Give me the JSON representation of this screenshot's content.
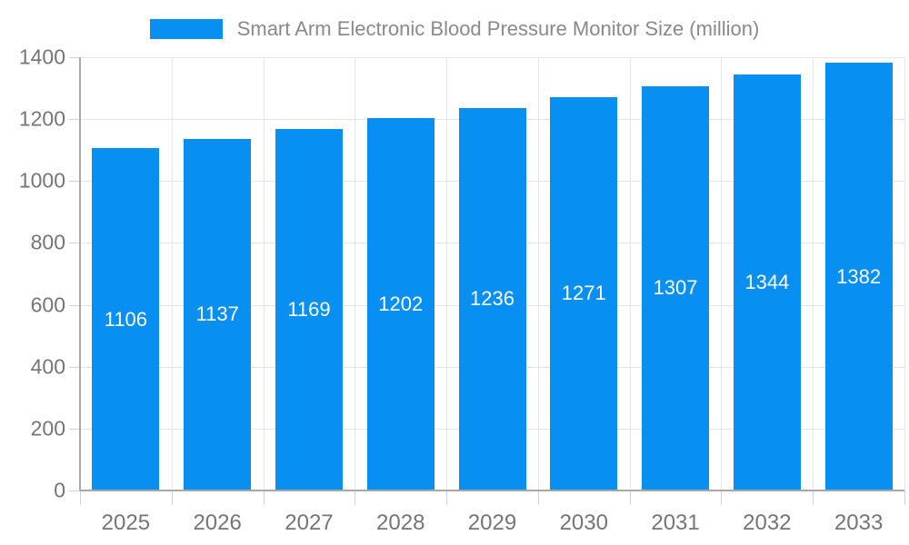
{
  "legend": {
    "label": "Smart Arm Electronic Blood Pressure Monitor Size (million)"
  },
  "colors": {
    "bar": "#0790F2",
    "grid": "#e5e5e5",
    "axis": "#a8a8a8",
    "tick": "#d2d2d2",
    "axis_text": "#757575",
    "legend_text": "#8a8a8a",
    "bar_label": "#ffffff",
    "background": "#ffffff"
  },
  "chart_data": {
    "type": "bar",
    "title": "Smart Arm Electronic Blood Pressure Monitor Size (million)",
    "categories": [
      "2025",
      "2026",
      "2027",
      "2028",
      "2029",
      "2030",
      "2031",
      "2032",
      "2033"
    ],
    "values": [
      1106,
      1137,
      1169,
      1202,
      1236,
      1271,
      1307,
      1344,
      1382
    ],
    "xlabel": "",
    "ylabel": "",
    "ylim": [
      0,
      1400
    ],
    "yticks": [
      0,
      200,
      400,
      600,
      800,
      1000,
      1200,
      1400
    ],
    "grid": true,
    "legend_position": "top",
    "bar_labels": "inside-center",
    "bar_color": "#0790F2"
  }
}
